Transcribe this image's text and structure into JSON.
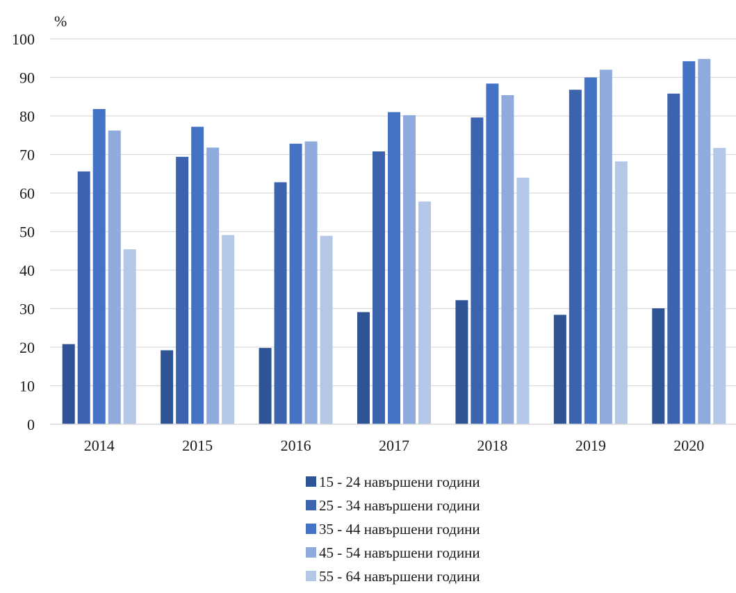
{
  "chart_data": {
    "type": "bar",
    "title": "",
    "xlabel": "",
    "ylabel": "%",
    "ylim": [
      0,
      100
    ],
    "yticks": [
      0,
      10,
      20,
      30,
      40,
      50,
      60,
      70,
      80,
      90,
      100
    ],
    "grid": true,
    "legend_position": "bottom",
    "categories": [
      "2014",
      "2015",
      "2016",
      "2017",
      "2018",
      "2019",
      "2020"
    ],
    "series": [
      {
        "name": "15 - 24 навършени години",
        "color": "#2f5496",
        "values": [
          20.8,
          19.2,
          19.8,
          29.1,
          32.2,
          28.4,
          30.1
        ]
      },
      {
        "name": "25 - 34 навършени години",
        "color": "#3c63ad",
        "values": [
          65.6,
          69.4,
          62.8,
          70.8,
          79.6,
          86.8,
          85.8
        ]
      },
      {
        "name": "35 - 44 навършени години",
        "color": "#4472c4",
        "values": [
          81.8,
          77.2,
          72.8,
          81.0,
          88.4,
          90.0,
          94.2
        ]
      },
      {
        "name": "45 - 54 навършени години",
        "color": "#8faadc",
        "values": [
          76.2,
          71.8,
          73.4,
          80.2,
          85.4,
          92.0,
          94.8
        ]
      },
      {
        "name": "55 - 64 навършени години",
        "color": "#b4c7e7",
        "values": [
          45.4,
          49.1,
          48.9,
          57.8,
          64.0,
          68.2,
          71.7
        ]
      }
    ]
  }
}
